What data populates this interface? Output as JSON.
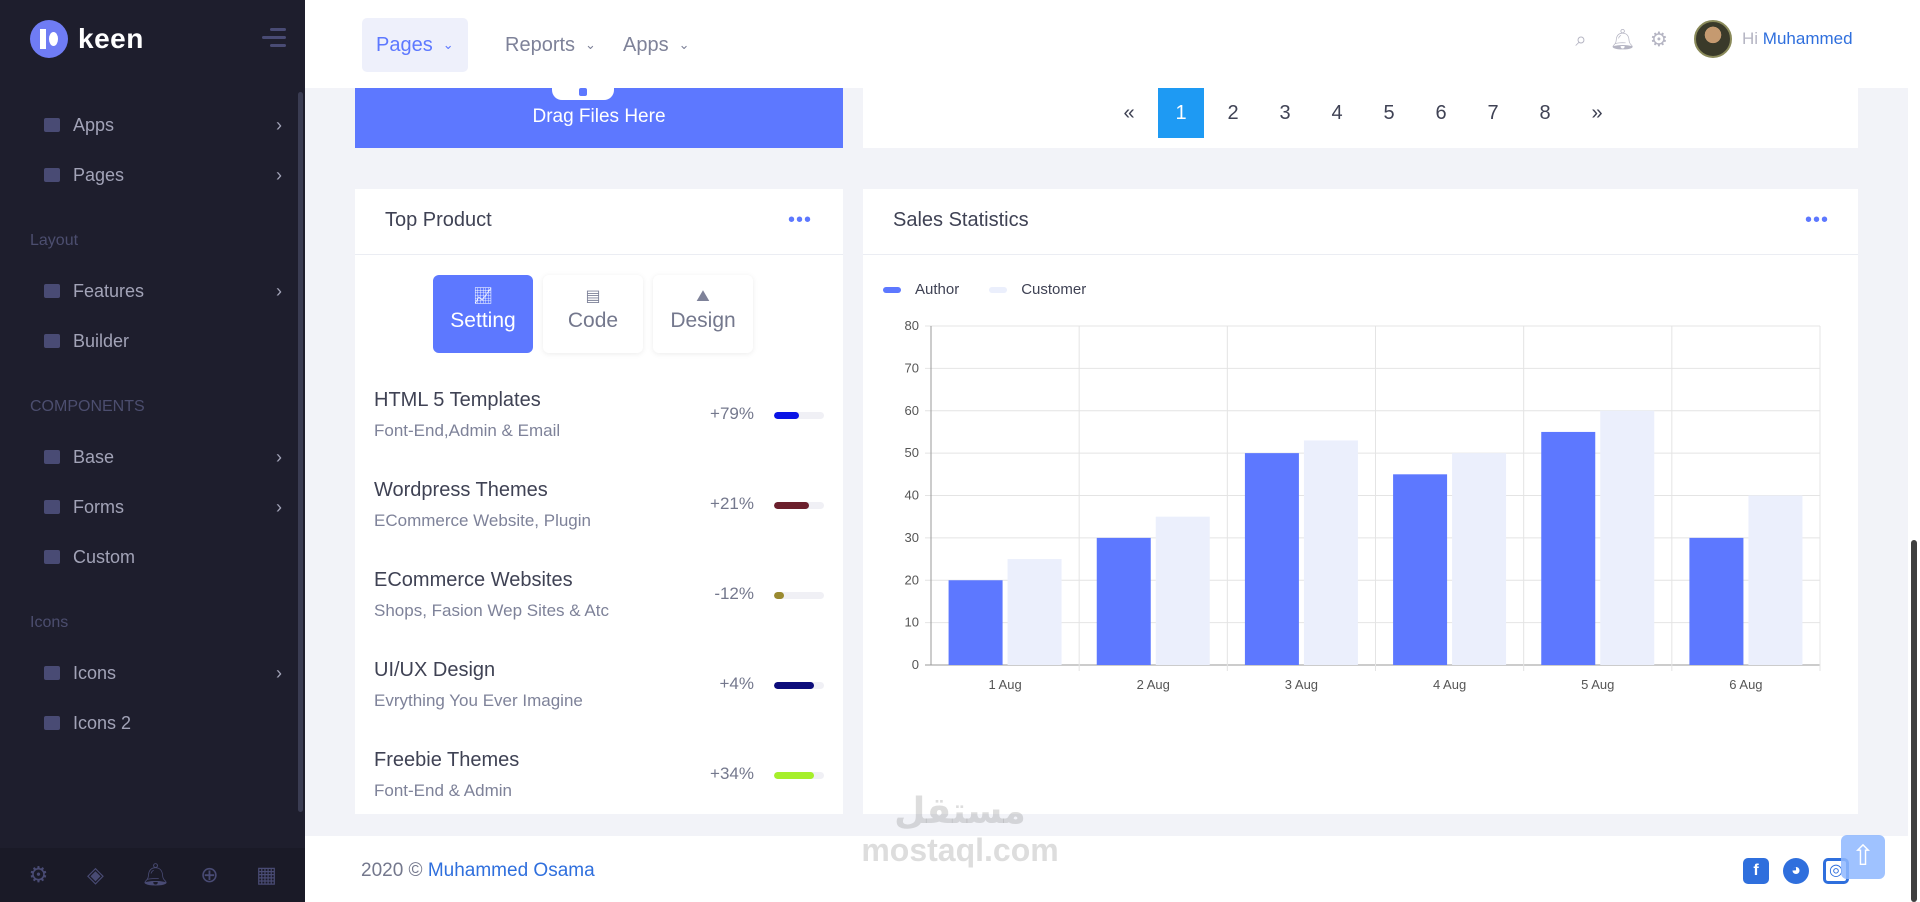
{
  "brand": {
    "name": "keen"
  },
  "sidebar": {
    "items": [
      {
        "label": "Apps",
        "icon": "paper-plane-icon",
        "chevron": "›"
      },
      {
        "label": "Pages",
        "icon": "file-icon",
        "chevron": "›"
      },
      {
        "label": "Features",
        "icon": "users-icon",
        "chevron": "›"
      },
      {
        "label": "Builder",
        "icon": "chart-icon",
        "chevron": ""
      },
      {
        "label": "Base",
        "icon": "cube-icon",
        "chevron": "›"
      },
      {
        "label": "Forms",
        "icon": "layers-icon",
        "chevron": "›"
      },
      {
        "label": "Custom",
        "icon": "calendar-icon",
        "chevron": ""
      },
      {
        "label": "Icons",
        "icon": "grid-icon",
        "chevron": "›"
      },
      {
        "label": "Icons 2",
        "icon": "grid-icon",
        "chevron": ""
      }
    ],
    "sections": [
      "Layout",
      "COMPONENTS",
      "Icons"
    ],
    "footer_icons": [
      "gears-icon",
      "cube-icon",
      "bell-icon",
      "plus-circle-icon",
      "calendar-icon"
    ]
  },
  "header": {
    "menu": [
      {
        "label": "Pages",
        "active": true
      },
      {
        "label": "Reports",
        "active": false
      },
      {
        "label": "Apps",
        "active": false
      }
    ],
    "greeting": "Hi",
    "user": "Muhammed"
  },
  "upload": {
    "label": "Drag Files Here"
  },
  "pagination": {
    "prev": "«",
    "next": "»",
    "pages": [
      "1",
      "2",
      "3",
      "4",
      "5",
      "6",
      "7",
      "8"
    ],
    "current": "1"
  },
  "top_product": {
    "title": "Top Product",
    "menu": "•••",
    "tabs": [
      {
        "label": "Setting",
        "icon": "chart-line-icon",
        "active": true
      },
      {
        "label": "Code",
        "icon": "map-icon",
        "active": false
      },
      {
        "label": "Design",
        "icon": "design-icon",
        "active": false
      }
    ],
    "products": [
      {
        "name": "HTML 5 Templates",
        "desc": "Font-End,Admin & Email",
        "change": "+79%",
        "progress": 0.5,
        "color": "#0a14e6"
      },
      {
        "name": "Wordpress Themes",
        "desc": "ECommerce Website, Plugin",
        "change": "+21%",
        "progress": 0.7,
        "color": "#6b1f2c"
      },
      {
        "name": "ECommerce Websites",
        "desc": "Shops, Fasion Wep Sites & Atc",
        "change": "-12%",
        "progress": 0.2,
        "color": "#9a8a30"
      },
      {
        "name": "UI/UX Design",
        "desc": "Evrything You Ever Imagine",
        "change": "+4%",
        "progress": 0.8,
        "color": "#0c0c7a"
      },
      {
        "name": "Freebie Themes",
        "desc": "Font-End & Admin",
        "change": "+34%",
        "progress": 0.8,
        "color": "#a6ef2a"
      }
    ]
  },
  "sales": {
    "title": "Sales Statistics",
    "menu": "•••"
  },
  "chart_data": {
    "type": "bar",
    "categories": [
      "1 Aug",
      "2 Aug",
      "3 Aug",
      "4 Aug",
      "5 Aug",
      "6 Aug"
    ],
    "series": [
      {
        "name": "Author",
        "values": [
          20,
          30,
          50,
          45,
          55,
          30
        ],
        "color": "#5d78ff"
      },
      {
        "name": "Customer",
        "values": [
          25,
          35,
          53,
          50,
          60,
          40
        ],
        "color": "#ebeffc"
      }
    ],
    "ylim": [
      0,
      80
    ],
    "yticks": [
      0,
      10,
      20,
      30,
      40,
      50,
      60,
      70,
      80
    ],
    "grid": true,
    "legend": "top-left",
    "title": "",
    "xlabel": "",
    "ylabel": ""
  },
  "footer": {
    "year": "2020 ©",
    "author": "Muhammed Osama",
    "socials": [
      "facebook-icon",
      "github-icon",
      "instagram-icon"
    ]
  },
  "watermark": {
    "arabic": "مستقل",
    "latin": "mostaql.com"
  }
}
